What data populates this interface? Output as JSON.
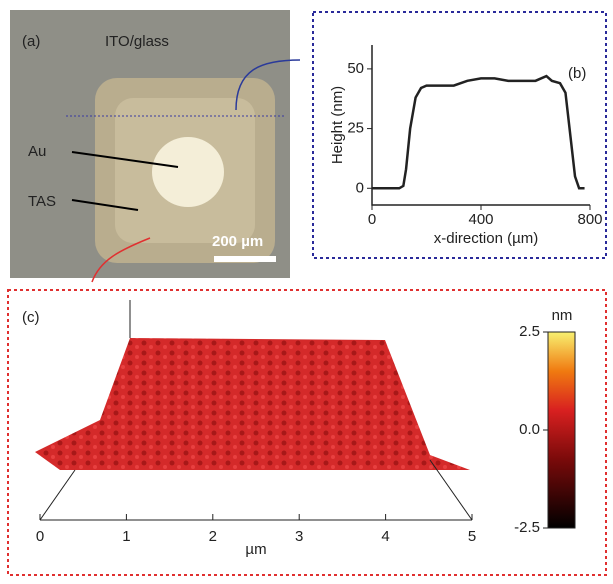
{
  "panel_a": {
    "label": "(a)",
    "title": "ITO/glass",
    "annotations": [
      "Au",
      "TAS"
    ],
    "scale_bar": "200 µm"
  },
  "chart_data": [
    {
      "type": "line",
      "label": "(b)",
      "xlabel": "x-direction (µm)",
      "ylabel": "Height (nm)",
      "color": "#222222",
      "x": [
        0,
        50,
        100,
        115,
        125,
        140,
        160,
        180,
        200,
        250,
        300,
        350,
        400,
        450,
        500,
        550,
        600,
        640,
        660,
        690,
        710,
        730,
        745,
        760,
        780
      ],
      "values": [
        0,
        0,
        0,
        1,
        8,
        25,
        38,
        42,
        43,
        43,
        43,
        45,
        46,
        46,
        45,
        45,
        45,
        47,
        45,
        44,
        40,
        20,
        5,
        0,
        0
      ],
      "xlim": [
        0,
        800
      ],
      "ylim": [
        -7,
        60
      ],
      "xticks": [
        0,
        400,
        800
      ],
      "yticks": [
        0,
        25,
        50
      ]
    },
    {
      "type": "surface",
      "label": "(c)",
      "xlabel": "µm",
      "xlim": [
        0,
        5
      ],
      "xticks": [
        0,
        1,
        2,
        3,
        4,
        5
      ],
      "colorbar": {
        "unit": "nm",
        "lim": [
          -2.5,
          2.5
        ],
        "ticks": [
          2.5,
          {
            "value": 0,
            "label": "0.0"
          },
          -2.5
        ]
      }
    }
  ]
}
